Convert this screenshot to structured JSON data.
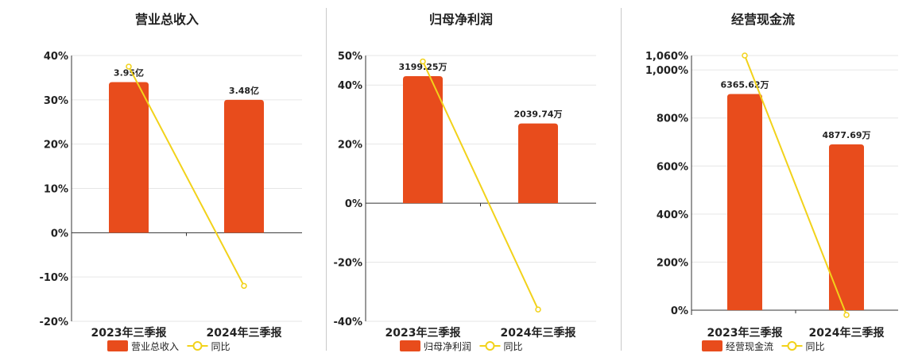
{
  "colors": {
    "bar": "#e84c1c",
    "line": "#f2d21a",
    "grid": "#e6e6e6",
    "axis": "#333333"
  },
  "chart_data": [
    {
      "type": "bar",
      "title": "营业总收入",
      "categories": [
        "2023年三季报",
        "2024年三季报"
      ],
      "series": [
        {
          "name": "营业总收入",
          "kind": "bar",
          "values": [
            34,
            30
          ],
          "labels": [
            "3.95亿",
            "3.48亿"
          ]
        },
        {
          "name": "同比",
          "kind": "line",
          "values": [
            37.5,
            -12
          ]
        }
      ],
      "yticks": [
        40,
        30,
        20,
        10,
        0,
        -10,
        -20
      ],
      "ytick_labels": [
        "40%",
        "30%",
        "20%",
        "10%",
        "0%",
        "-10%",
        "-20%"
      ],
      "ylim": [
        -20,
        40
      ],
      "grid": true,
      "legend": "bottom"
    },
    {
      "type": "bar",
      "title": "归母净利润",
      "categories": [
        "2023年三季报",
        "2024年三季报"
      ],
      "series": [
        {
          "name": "归母净利润",
          "kind": "bar",
          "values": [
            43,
            27
          ],
          "labels": [
            "3199.25万",
            "2039.74万"
          ]
        },
        {
          "name": "同比",
          "kind": "line",
          "values": [
            48,
            -36
          ]
        }
      ],
      "yticks": [
        50,
        40,
        20,
        0,
        -20,
        -40
      ],
      "ytick_labels": [
        "50%",
        "40%",
        "20%",
        "0%",
        "-20%",
        "-40%"
      ],
      "ylim": [
        -40,
        50
      ],
      "grid": true,
      "legend": "bottom"
    },
    {
      "type": "bar",
      "title": "经营现金流",
      "categories": [
        "2023年三季报",
        "2024年三季报"
      ],
      "series": [
        {
          "name": "经营现金流",
          "kind": "bar",
          "values": [
            900,
            690
          ],
          "labels": [
            "6365.62万",
            "4877.69万"
          ]
        },
        {
          "name": "同比",
          "kind": "line",
          "values": [
            1060,
            -20
          ]
        }
      ],
      "yticks": [
        1060,
        1000,
        800,
        600,
        400,
        200,
        0
      ],
      "ytick_labels": [
        "1,060%",
        "1,000%",
        "800%",
        "600%",
        "400%",
        "200%",
        "0%"
      ],
      "ylim": [
        -20,
        1060
      ],
      "grid": true,
      "legend": "bottom"
    }
  ]
}
